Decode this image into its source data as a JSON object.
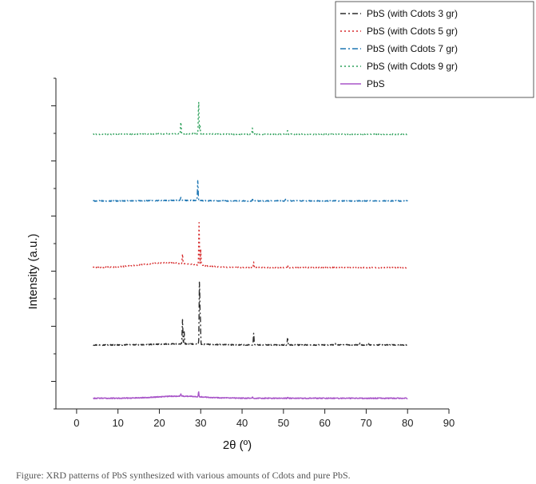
{
  "chart_data": {
    "type": "line",
    "title": "",
    "xlabel": "2θ (º)",
    "ylabel": "Intensity (a.u.)",
    "xlim": [
      -5,
      90
    ],
    "ylim": [
      0,
      6.2
    ],
    "x_ticks": [
      0,
      10,
      20,
      30,
      40,
      50,
      60,
      70,
      80,
      90
    ],
    "x_tick_labels": [
      "0",
      "10",
      "20",
      "30",
      "40",
      "50",
      "60",
      "70",
      "80",
      "90"
    ],
    "y_tick_labels_shown": false,
    "grid": false,
    "legend_position": "top-right",
    "x_range": [
      4,
      80
    ],
    "series": [
      {
        "name": "PbS (with Cdots 3 gr)",
        "color": "#2b2b2b",
        "dash": "dashdot",
        "baseline": 1.2,
        "hump": {
          "center": 25,
          "width": 8,
          "height": 0.02
        },
        "peaks": [
          [
            25.6,
            0.45
          ],
          [
            26.0,
            0.22
          ],
          [
            29.7,
            1.2
          ],
          [
            29.9,
            0.5
          ],
          [
            42.8,
            0.22
          ],
          [
            51.0,
            0.13
          ],
          [
            62.5,
            0.03
          ],
          [
            68.5,
            0.04
          ],
          [
            70.5,
            0.03
          ]
        ]
      },
      {
        "name": "PbS (with Cdots 5 gr)",
        "color": "#d62728",
        "dash": "dotted",
        "baseline": 2.65,
        "hump": {
          "center": 22,
          "width": 9,
          "height": 0.09
        },
        "peaks": [
          [
            25.6,
            0.18
          ],
          [
            29.6,
            0.8
          ],
          [
            30.0,
            0.3
          ],
          [
            42.8,
            0.1
          ],
          [
            51.0,
            0.05
          ],
          [
            62.0,
            0.03
          ]
        ]
      },
      {
        "name": "PbS (with Cdots 7 gr)",
        "color": "#1f77b4",
        "dash": "dashdot",
        "baseline": 3.9,
        "hump": {
          "center": 25,
          "width": 8,
          "height": 0.01
        },
        "peaks": [
          [
            25.2,
            0.06
          ],
          [
            29.3,
            0.38
          ],
          [
            42.5,
            0.03
          ],
          [
            50.5,
            0.03
          ]
        ]
      },
      {
        "name": "PbS (with Cdots 9 gr)",
        "color": "#2ca05a",
        "dash": "dotted",
        "baseline": 5.15,
        "hump": {
          "center": 25,
          "width": 8,
          "height": 0.01
        },
        "peaks": [
          [
            25.2,
            0.22
          ],
          [
            29.5,
            0.62
          ],
          [
            29.8,
            0.18
          ],
          [
            42.5,
            0.12
          ],
          [
            51.0,
            0.08
          ]
        ]
      },
      {
        "name": "PbS",
        "color": "#a855c8",
        "dash": "solid",
        "baseline": 0.2,
        "hump": {
          "center": 25,
          "width": 8,
          "height": 0.04
        },
        "peaks": [
          [
            25.2,
            0.05
          ],
          [
            29.5,
            0.09
          ],
          [
            42.5,
            0.02
          ],
          [
            51.0,
            0.02
          ]
        ]
      }
    ]
  },
  "caption": "Figure: XRD patterns of PbS synthesized with various amounts of Cdots and pure PbS."
}
